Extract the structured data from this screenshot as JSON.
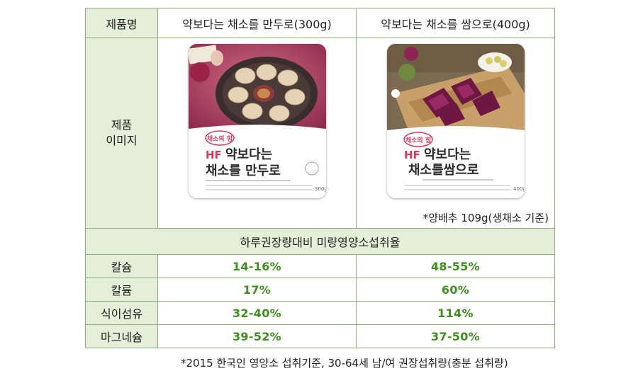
{
  "table": {
    "header_label": "제품명",
    "products": [
      {
        "name": "약보다는 채소를 만두로(300g)",
        "package": {
          "brand": "HF",
          "title_line1": "약보다는",
          "title_line2": "채소를 만두로",
          "weight": "300g",
          "image": "dumplings-on-plate"
        }
      },
      {
        "name": "약보다는 채소를 쌈으로(400g)",
        "package": {
          "brand": "HF",
          "title_line1": "약보다는",
          "title_line2": "채소를쌈으로",
          "weight": "400g",
          "image": "purple-cabbage-on-board"
        }
      }
    ],
    "image_label_line1": "제품",
    "image_label_line2": "이미지",
    "image_note": "*양배추 109g(생채소 기준)",
    "subheader": "하루권장량대비 미량영양소섭취율",
    "rows": [
      {
        "label": "칼슘",
        "values": [
          "14-16%",
          "48-55%"
        ]
      },
      {
        "label": "칼륨",
        "values": [
          "17%",
          "60%"
        ]
      },
      {
        "label": "식이섬유",
        "values": [
          "32-40%",
          "114%"
        ]
      },
      {
        "label": "마그네슘",
        "values": [
          "39-52%",
          "37-50%"
        ]
      }
    ]
  },
  "footnote": "*2015 한국인 영양소 섭취기준, 30-64세 남/여 권장섭취량(충분 섭취량)",
  "colors": {
    "border": "#8fb07a",
    "header_bg": "#e3efd8",
    "value_text": "#3d8f1c"
  }
}
